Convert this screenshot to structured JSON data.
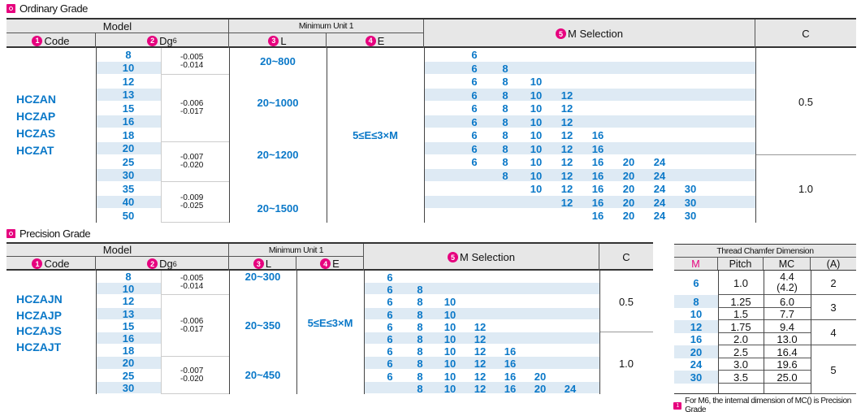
{
  "ordinary": {
    "title": "Ordinary Grade",
    "header": {
      "model": "Model",
      "min_unit": "Minimum Unit 1",
      "code_badge": "1",
      "code": "Code",
      "dg_badge": "2",
      "dg": "Dg",
      "dg_sup": "6",
      "l_badge": "3",
      "l": "L",
      "e_badge": "4",
      "e": "E",
      "m_badge": "5",
      "m_selection": "M  Selection",
      "c": "C"
    },
    "codes": [
      "HCZAN",
      "HCZAP",
      "HCZAS",
      "HCZAT"
    ],
    "dg_values": [
      "8",
      "10",
      "12",
      "13",
      "15",
      "16",
      "18",
      "20",
      "25",
      "30",
      "35",
      "40",
      "50"
    ],
    "tolerances": [
      {
        "upper": "-0.005",
        "lower": "-0.014"
      },
      {
        "upper": "-0.006",
        "lower": "-0.017"
      },
      {
        "upper": "-0.007",
        "lower": "-0.020"
      },
      {
        "upper": "-0.009",
        "lower": "-0.025"
      }
    ],
    "l_values": [
      "20~800",
      "20~1000",
      "20~1200",
      "20~1500"
    ],
    "e_value": "5≤E≤3×M",
    "m_rows": [
      [
        "6"
      ],
      [
        "6",
        "8"
      ],
      [
        "6",
        "8",
        "10"
      ],
      [
        "6",
        "8",
        "10",
        "12"
      ],
      [
        "6",
        "8",
        "10",
        "12"
      ],
      [
        "6",
        "8",
        "10",
        "12"
      ],
      [
        "6",
        "8",
        "10",
        "12",
        "16"
      ],
      [
        "6",
        "8",
        "10",
        "12",
        "16"
      ],
      [
        "6",
        "8",
        "10",
        "12",
        "16",
        "20",
        "24"
      ],
      [
        "8",
        "10",
        "12",
        "16",
        "20",
        "24"
      ],
      [
        "10",
        "12",
        "16",
        "20",
        "24",
        "30"
      ],
      [
        "12",
        "16",
        "20",
        "24",
        "30"
      ],
      [
        "16",
        "20",
        "24",
        "30"
      ]
    ],
    "c_values": [
      "0.5",
      "1.0"
    ]
  },
  "precision": {
    "title": "Precision Grade",
    "header": {
      "model": "Model",
      "min_unit": "Minimum Unit 1",
      "code_badge": "1",
      "code": "Code",
      "dg_badge": "2",
      "dg": "Dg",
      "dg_sup": "6",
      "l_badge": "3",
      "l": "L",
      "e_badge": "4",
      "e": "E",
      "m_badge": "5",
      "m_selection": "M  Selection",
      "c": "C"
    },
    "codes": [
      "HCZAJN",
      "HCZAJP",
      "HCZAJS",
      "HCZAJT"
    ],
    "dg_values": [
      "8",
      "10",
      "12",
      "13",
      "15",
      "16",
      "18",
      "20",
      "25",
      "30"
    ],
    "tolerances": [
      {
        "upper": "-0.005",
        "lower": "-0.014"
      },
      {
        "upper": "-0.006",
        "lower": "-0.017"
      },
      {
        "upper": "-0.007",
        "lower": "-0.020"
      }
    ],
    "l_values": [
      "20~300",
      "20~350",
      "20~450"
    ],
    "e_value": "5≤E≤3×M",
    "m_rows": [
      [
        "6"
      ],
      [
        "6",
        "8"
      ],
      [
        "6",
        "8",
        "10"
      ],
      [
        "6",
        "8",
        "10"
      ],
      [
        "6",
        "8",
        "10",
        "12"
      ],
      [
        "6",
        "8",
        "10",
        "12"
      ],
      [
        "6",
        "8",
        "10",
        "12",
        "16"
      ],
      [
        "6",
        "8",
        "10",
        "12",
        "16"
      ],
      [
        "6",
        "8",
        "10",
        "12",
        "16",
        "20"
      ],
      [
        "8",
        "10",
        "12",
        "16",
        "20",
        "24"
      ]
    ],
    "c_values": [
      "0.5",
      "1.0"
    ]
  },
  "thread": {
    "title": "Thread Chamfer Dimension",
    "headers": {
      "m": "M",
      "pitch": "Pitch",
      "mc": "MC",
      "a": "(A)"
    },
    "rows": [
      {
        "m": "6",
        "pitch": "1.0",
        "mc": "4.4",
        "mc2": "(4.2)"
      },
      {
        "m": "8",
        "pitch": "1.25",
        "mc": "6.0"
      },
      {
        "m": "10",
        "pitch": "1.5",
        "mc": "7.7"
      },
      {
        "m": "12",
        "pitch": "1.75",
        "mc": "9.4"
      },
      {
        "m": "16",
        "pitch": "2.0",
        "mc": "13.0"
      },
      {
        "m": "20",
        "pitch": "2.5",
        "mc": "16.4"
      },
      {
        "m": "24",
        "pitch": "3.0",
        "mc": "19.6"
      },
      {
        "m": "30",
        "pitch": "3.5",
        "mc": "25.0"
      }
    ],
    "a_values": [
      "2",
      "3",
      "4",
      "5"
    ],
    "note_badge": "1",
    "note": "For M6, the internal dimension of MC() is Precision Grade"
  },
  "colors": {
    "accent": "#e6007e",
    "value_blue": "#0a78c8",
    "stripe": "#deeaf4",
    "header": "#e7e7e7"
  }
}
